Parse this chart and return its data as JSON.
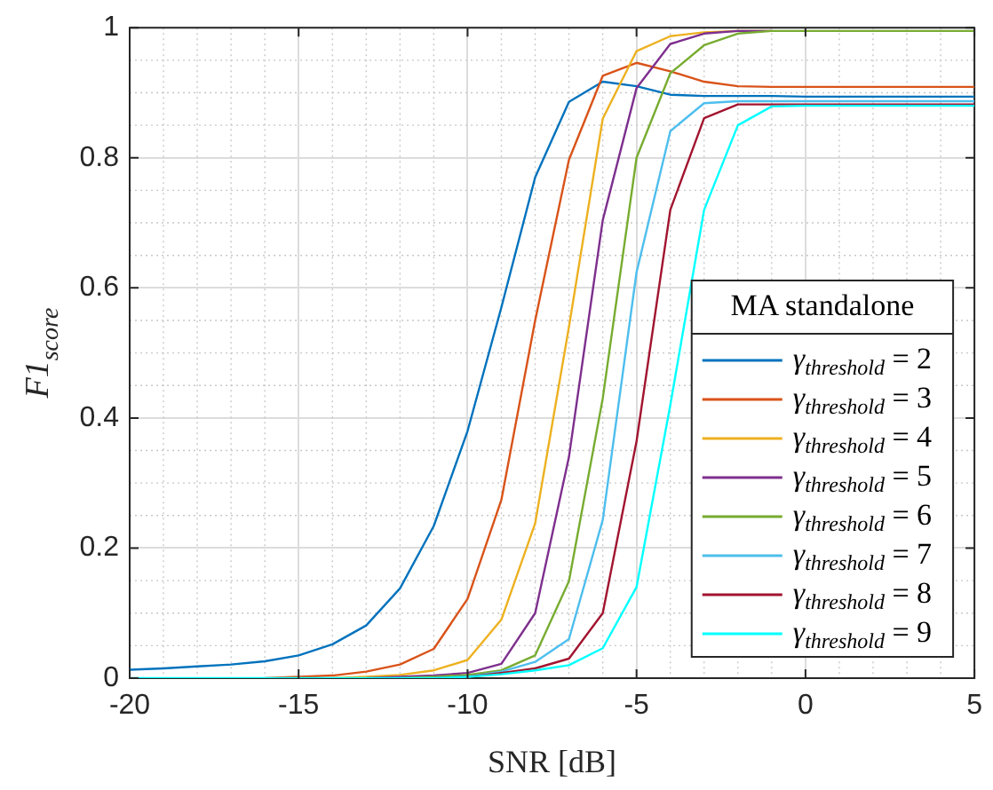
{
  "chart_data": {
    "type": "line",
    "xlabel": "SNR [dB]",
    "ylabel": "F1$_{score}$",
    "legend_title": "MA standalone",
    "legend": "bottom right",
    "grid": true,
    "marker": "none",
    "line_style": "solid",
    "x": [
      -20,
      -19,
      -18,
      -17,
      -16,
      -15,
      -14,
      -13,
      -12,
      -11,
      -10,
      -9,
      -8,
      -7,
      -6,
      -5,
      -4,
      -3,
      -2,
      -1,
      0,
      1,
      2,
      3,
      4,
      5
    ],
    "xlim": [
      -20,
      5
    ],
    "xticks": [
      -20,
      -15,
      -10,
      -5,
      0,
      5
    ],
    "ylim": [
      0,
      1
    ],
    "yticks": [
      0,
      0.2,
      0.4,
      0.6,
      0.8,
      1
    ],
    "series": [
      {
        "name": "γ$_{threshold}$ = 2",
        "color": "#0072bd",
        "values": [
          0.013,
          0.015,
          0.018,
          0.021,
          0.026,
          0.035,
          0.052,
          0.081,
          0.138,
          0.234,
          0.38,
          0.57,
          0.77,
          0.886,
          0.917,
          0.91,
          0.897,
          0.895,
          0.895,
          0.895,
          0.894,
          0.894,
          0.894,
          0.894,
          0.894,
          0.894
        ]
      },
      {
        "name": "γ$_{threshold}$ = 3",
        "color": "#d95319",
        "values": [
          null,
          null,
          null,
          null,
          0,
          0.002,
          0.004,
          0.01,
          0.021,
          0.045,
          0.122,
          0.274,
          0.55,
          0.797,
          0.926,
          0.946,
          0.933,
          0.917,
          0.91,
          0.909,
          0.909,
          0.909,
          0.909,
          0.909,
          0.909,
          0.909
        ]
      },
      {
        "name": "γ$_{threshold}$ = 4",
        "color": "#edb120",
        "values": [
          null,
          null,
          null,
          null,
          null,
          null,
          0,
          0.002,
          0.005,
          0.012,
          0.028,
          0.09,
          0.238,
          0.54,
          0.86,
          0.964,
          0.987,
          0.993,
          0.995,
          0.995,
          null,
          null,
          null,
          null,
          null,
          null
        ]
      },
      {
        "name": "γ$_{threshold}$ = 5",
        "color": "#7e2f8e",
        "values": [
          null,
          null,
          null,
          null,
          null,
          null,
          null,
          0,
          0.002,
          0.004,
          0.008,
          0.022,
          0.1,
          0.34,
          0.704,
          0.907,
          0.975,
          0.991,
          0.995,
          0.995,
          null,
          null,
          null,
          null,
          null,
          null
        ]
      },
      {
        "name": "γ$_{threshold}$ = 6",
        "color": "#77ac30",
        "values": [
          null,
          null,
          null,
          null,
          null,
          null,
          null,
          null,
          0,
          0.002,
          0.005,
          0.012,
          0.035,
          0.149,
          0.43,
          0.8,
          0.93,
          0.973,
          0.991,
          0.995,
          0.995,
          0.995,
          0.995,
          0.995,
          0.995,
          0.995
        ]
      },
      {
        "name": "γ$_{threshold}$ = 7",
        "color": "#4dbeee",
        "values": [
          null,
          null,
          null,
          null,
          null,
          null,
          null,
          null,
          null,
          0,
          0.002,
          0.01,
          0.025,
          0.06,
          0.243,
          0.624,
          0.841,
          0.884,
          0.887,
          0.887,
          0.887,
          0.887,
          0.887,
          0.887,
          0.887,
          0.887
        ]
      },
      {
        "name": "γ$_{threshold}$ = 8",
        "color": "#a2142f",
        "values": [
          null,
          null,
          null,
          null,
          null,
          null,
          null,
          null,
          null,
          0,
          0.002,
          0.008,
          0.015,
          0.03,
          0.1,
          0.364,
          0.72,
          0.861,
          0.882,
          0.882,
          0.882,
          0.882,
          0.882,
          0.882,
          0.882,
          0.882
        ]
      },
      {
        "name": "γ$_{threshold}$ = 9",
        "color": "#00ffff",
        "values": [
          0,
          0,
          0,
          0,
          0,
          0,
          0,
          0,
          0,
          0,
          0.002,
          0.006,
          0.012,
          0.02,
          0.046,
          0.14,
          0.42,
          0.72,
          0.85,
          0.879,
          0.88,
          0.88,
          0.88,
          0.88,
          0.88,
          0.88
        ]
      }
    ]
  }
}
